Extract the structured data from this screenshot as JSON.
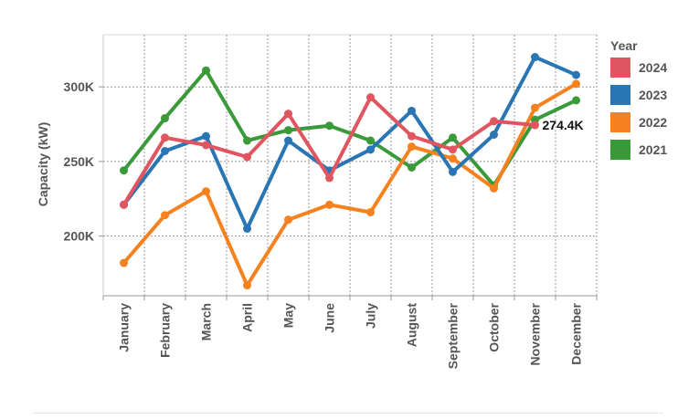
{
  "chart_data": {
    "type": "line",
    "title": "",
    "xlabel": "",
    "ylabel": "Capacity (kW)",
    "categories": [
      "January",
      "February",
      "March",
      "April",
      "May",
      "June",
      "July",
      "August",
      "September",
      "October",
      "November",
      "December"
    ],
    "ylim": [
      160000,
      335000
    ],
    "yticks": [
      {
        "value": 200000,
        "label": "200K"
      },
      {
        "value": 250000,
        "label": "250K"
      },
      {
        "value": 300000,
        "label": "300K"
      }
    ],
    "grid": true,
    "legend": {
      "title": "Year",
      "placement": "right"
    },
    "series": [
      {
        "name": "2021",
        "color": "#3a9a3a",
        "values": [
          244000,
          279000,
          311000,
          264000,
          271000,
          274000,
          264000,
          246000,
          266000,
          234000,
          278000,
          291000
        ]
      },
      {
        "name": "2022",
        "color": "#f5821f",
        "values": [
          182000,
          214000,
          230000,
          167000,
          211000,
          221000,
          216000,
          260000,
          252000,
          232000,
          286000,
          302000
        ]
      },
      {
        "name": "2023",
        "color": "#2a76b5",
        "values": [
          221000,
          257000,
          267000,
          205000,
          264000,
          244000,
          258000,
          284000,
          243000,
          268000,
          320000,
          308000
        ]
      },
      {
        "name": "2024",
        "color": "#e0555f",
        "values": [
          221000,
          266000,
          261000,
          253000,
          282000,
          239000,
          293000,
          267000,
          258000,
          277000,
          274400,
          null
        ]
      }
    ],
    "annotations": [
      {
        "series": "2024",
        "category": "November",
        "label": "274.4K"
      }
    ]
  }
}
